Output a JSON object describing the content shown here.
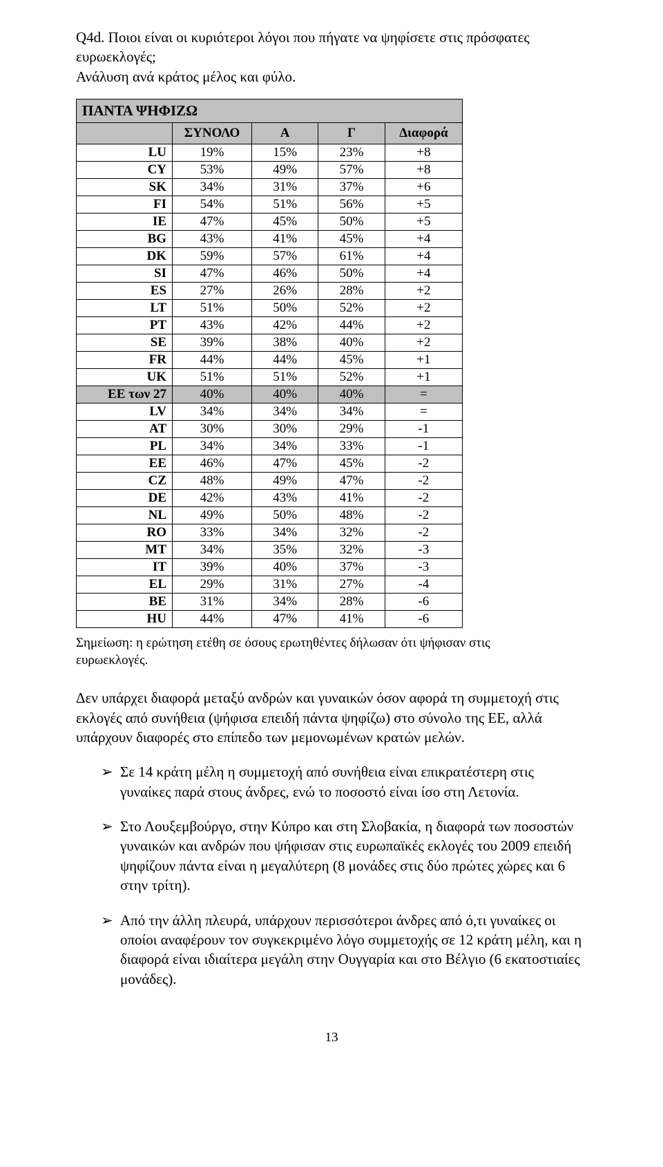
{
  "question": {
    "line1": "Q4d. Ποιοι είναι οι κυριότεροι λόγοι που πήγατε να ψηφίσετε στις πρόσφατες ευρωεκλογές;",
    "line2": "Ανάλυση ανά κράτος μέλος και φύλο."
  },
  "table": {
    "title": "ΠΑΝΤΑ ΨΗΦΙΖΩ",
    "columns": [
      "",
      "ΣΥΝΟΛΟ",
      "Α",
      "Γ",
      "Διαφορά"
    ],
    "col_widths": [
      "160px",
      "110px",
      "100px",
      "100px",
      "110px"
    ],
    "highlight_row_index": 14,
    "title_bg": "#c0c0c0",
    "header_bg": "#c0c0c0",
    "highlight_bg": "#c0c0c0",
    "border_color": "#000000",
    "font_size": 19,
    "rows": [
      [
        "LU",
        "19%",
        "15%",
        "23%",
        "+8"
      ],
      [
        "CY",
        "53%",
        "49%",
        "57%",
        "+8"
      ],
      [
        "SK",
        "34%",
        "31%",
        "37%",
        "+6"
      ],
      [
        "FI",
        "54%",
        "51%",
        "56%",
        "+5"
      ],
      [
        "IE",
        "47%",
        "45%",
        "50%",
        "+5"
      ],
      [
        "BG",
        "43%",
        "41%",
        "45%",
        "+4"
      ],
      [
        "DK",
        "59%",
        "57%",
        "61%",
        "+4"
      ],
      [
        "SI",
        "47%",
        "46%",
        "50%",
        "+4"
      ],
      [
        "ES",
        "27%",
        "26%",
        "28%",
        "+2"
      ],
      [
        "LT",
        "51%",
        "50%",
        "52%",
        "+2"
      ],
      [
        "PT",
        "43%",
        "42%",
        "44%",
        "+2"
      ],
      [
        "SE",
        "39%",
        "38%",
        "40%",
        "+2"
      ],
      [
        "FR",
        "44%",
        "44%",
        "45%",
        "+1"
      ],
      [
        "UK",
        "51%",
        "51%",
        "52%",
        "+1"
      ],
      [
        "ΕΕ των 27",
        "40%",
        "40%",
        "40%",
        "="
      ],
      [
        "LV",
        "34%",
        "34%",
        "34%",
        "="
      ],
      [
        "AT",
        "30%",
        "30%",
        "29%",
        "-1"
      ],
      [
        "PL",
        "34%",
        "34%",
        "33%",
        "-1"
      ],
      [
        "EE",
        "46%",
        "47%",
        "45%",
        "-2"
      ],
      [
        "CZ",
        "48%",
        "49%",
        "47%",
        "-2"
      ],
      [
        "DE",
        "42%",
        "43%",
        "41%",
        "-2"
      ],
      [
        "NL",
        "49%",
        "50%",
        "48%",
        "-2"
      ],
      [
        "RO",
        "33%",
        "34%",
        "32%",
        "-2"
      ],
      [
        "MT",
        "34%",
        "35%",
        "32%",
        "-3"
      ],
      [
        "IT",
        "39%",
        "40%",
        "37%",
        "-3"
      ],
      [
        "EL",
        "29%",
        "31%",
        "27%",
        "-4"
      ],
      [
        "BE",
        "31%",
        "34%",
        "28%",
        "-6"
      ],
      [
        "HU",
        "44%",
        "47%",
        "41%",
        "-6"
      ]
    ]
  },
  "note": "Σημείωση: η ερώτηση ετέθη σε όσους ερωτηθέντες δήλωσαν ότι ψήφισαν στις ευρωεκλογές.",
  "paragraph": "Δεν υπάρχει διαφορά μεταξύ ανδρών και γυναικών όσον αφορά τη συμμετοχή στις εκλογές από συνήθεια (ψήφισα επειδή πάντα ψηφίζω) στο σύνολο της ΕΕ, αλλά υπάρχουν διαφορές στο επίπεδο των μεμονωμένων κρατών μελών.",
  "bullets": [
    "Σε 14 κράτη μέλη η συμμετοχή από συνήθεια είναι επικρατέστερη στις γυναίκες παρά στους άνδρες, ενώ το ποσοστό είναι ίσο στη Λετονία.",
    "Στο Λουξεμβούργο, στην Κύπρο και στη Σλοβακία, η διαφορά των ποσοστών γυναικών και ανδρών που ψήφισαν στις ευρωπαϊκές εκλογές του 2009 επειδή ψηφίζουν πάντα είναι η μεγαλύτερη (8 μονάδες στις δύο πρώτες χώρες και 6 στην τρίτη).",
    "Από την άλλη πλευρά, υπάρχουν περισσότεροι άνδρες από ό,τι γυναίκες οι οποίοι αναφέρουν τον συγκεκριμένο λόγο συμμετοχής σε 12 κράτη μέλη, και η διαφορά είναι ιδιαίτερα μεγάλη στην Ουγγαρία και στο Βέλγιο (6 εκατοστιαίες μονάδες)."
  ],
  "bullet_glyph": "➢",
  "page_number": "13"
}
